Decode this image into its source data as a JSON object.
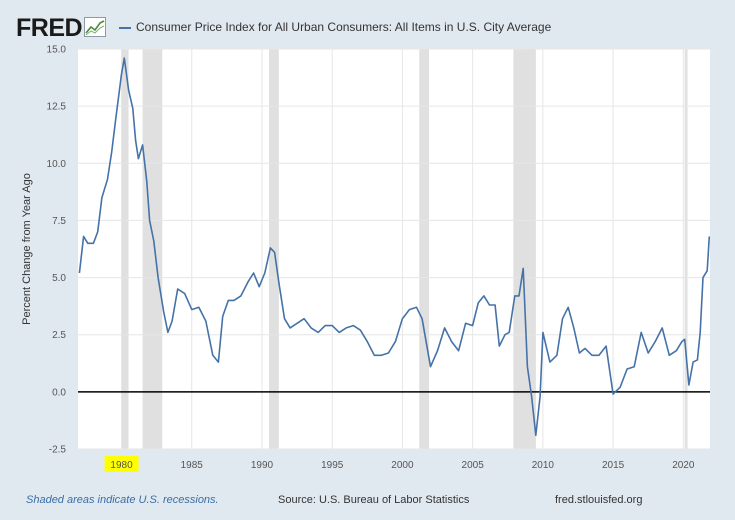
{
  "header": {
    "logo_text": "FRED",
    "legend_label": "Consumer Price Index for All Urban Consumers: All Items in U.S. City Average"
  },
  "footer": {
    "note": "Shaded areas indicate U.S. recessions.",
    "source": "Source: U.S. Bureau of Labor Statistics",
    "url": "fred.stlouisfed.org"
  },
  "colors": {
    "series": "#4572a7",
    "recession": "#e0e0e0",
    "zero_line": "#000000",
    "highlight": "#ffff00"
  },
  "chart_data": {
    "type": "line",
    "title": "Consumer Price Index for All Urban Consumers: All Items in U.S. City Average",
    "xlabel": "",
    "ylabel": "Percent Change from Year Ago",
    "xlim": [
      1976.9,
      2021.9
    ],
    "ylim": [
      -2.5,
      15.0
    ],
    "y_ticks": [
      "15.0",
      "12.5",
      "10.0",
      "7.5",
      "5.0",
      "2.5",
      "0.0",
      "-2.5"
    ],
    "y_tick_values": [
      15.0,
      12.5,
      10.0,
      7.5,
      5.0,
      2.5,
      0.0,
      -2.5
    ],
    "x_ticks": [
      "1980",
      "1985",
      "1990",
      "1995",
      "2000",
      "2005",
      "2010",
      "2015",
      "2020"
    ],
    "x_tick_values": [
      1980,
      1985,
      1990,
      1995,
      2000,
      2005,
      2010,
      2015,
      2020
    ],
    "highlighted_tick": "1980",
    "grid": true,
    "recessions": [
      [
        1980.0,
        1980.5
      ],
      [
        1981.5,
        1982.9
      ],
      [
        1990.5,
        1991.2
      ],
      [
        2001.2,
        2001.9
      ],
      [
        2007.9,
        2009.5
      ],
      [
        2020.1,
        2020.3
      ]
    ],
    "series": [
      {
        "name": "Consumer Price Index for All Urban Consumers: All Items in U.S. City Average",
        "x": [
          1977.0,
          1977.3,
          1977.6,
          1978.0,
          1978.3,
          1978.6,
          1979.0,
          1979.3,
          1979.6,
          1980.0,
          1980.2,
          1980.5,
          1980.8,
          1981.0,
          1981.2,
          1981.5,
          1981.8,
          1982.0,
          1982.3,
          1982.6,
          1983.0,
          1983.3,
          1983.6,
          1984.0,
          1984.5,
          1985.0,
          1985.5,
          1986.0,
          1986.5,
          1986.9,
          1987.2,
          1987.6,
          1988.0,
          1988.5,
          1989.0,
          1989.4,
          1989.8,
          1990.2,
          1990.6,
          1990.9,
          1991.2,
          1991.6,
          1992.0,
          1992.5,
          1993.0,
          1993.5,
          1994.0,
          1994.5,
          1995.0,
          1995.5,
          1996.0,
          1996.5,
          1997.0,
          1997.5,
          1998.0,
          1998.5,
          1999.0,
          1999.5,
          2000.0,
          2000.5,
          2001.0,
          2001.4,
          2001.8,
          2002.0,
          2002.5,
          2003.0,
          2003.5,
          2004.0,
          2004.5,
          2005.0,
          2005.4,
          2005.8,
          2006.2,
          2006.6,
          2006.9,
          2007.3,
          2007.6,
          2008.0,
          2008.3,
          2008.6,
          2008.9,
          2009.2,
          2009.5,
          2009.8,
          2010.0,
          2010.5,
          2011.0,
          2011.4,
          2011.8,
          2012.2,
          2012.6,
          2013.0,
          2013.5,
          2014.0,
          2014.5,
          2015.0,
          2015.5,
          2016.0,
          2016.5,
          2017.0,
          2017.5,
          2018.0,
          2018.5,
          2019.0,
          2019.5,
          2019.9,
          2020.1,
          2020.4,
          2020.7,
          2021.0,
          2021.2,
          2021.4,
          2021.7,
          2021.85
        ],
        "values": [
          5.2,
          6.8,
          6.5,
          6.5,
          7.0,
          8.5,
          9.3,
          10.5,
          12.0,
          13.9,
          14.6,
          13.2,
          12.4,
          11.0,
          10.2,
          10.8,
          9.2,
          7.5,
          6.6,
          5.0,
          3.5,
          2.6,
          3.1,
          4.5,
          4.3,
          3.6,
          3.7,
          3.1,
          1.6,
          1.3,
          3.3,
          4.0,
          4.0,
          4.2,
          4.8,
          5.2,
          4.6,
          5.2,
          6.3,
          6.1,
          4.8,
          3.2,
          2.8,
          3.0,
          3.2,
          2.8,
          2.6,
          2.9,
          2.9,
          2.6,
          2.8,
          2.9,
          2.7,
          2.2,
          1.6,
          1.6,
          1.7,
          2.2,
          3.2,
          3.6,
          3.7,
          3.2,
          1.8,
          1.1,
          1.8,
          2.8,
          2.2,
          1.8,
          3.0,
          2.9,
          3.9,
          4.2,
          3.8,
          3.8,
          2.0,
          2.5,
          2.6,
          4.2,
          4.2,
          5.4,
          1.1,
          -0.2,
          -1.9,
          -0.2,
          2.6,
          1.3,
          1.6,
          3.2,
          3.7,
          2.8,
          1.7,
          1.9,
          1.6,
          1.6,
          2.0,
          -0.1,
          0.2,
          1.0,
          1.1,
          2.6,
          1.7,
          2.2,
          2.8,
          1.6,
          1.8,
          2.2,
          2.3,
          0.3,
          1.3,
          1.4,
          2.6,
          5.0,
          5.3,
          6.8
        ]
      }
    ]
  }
}
